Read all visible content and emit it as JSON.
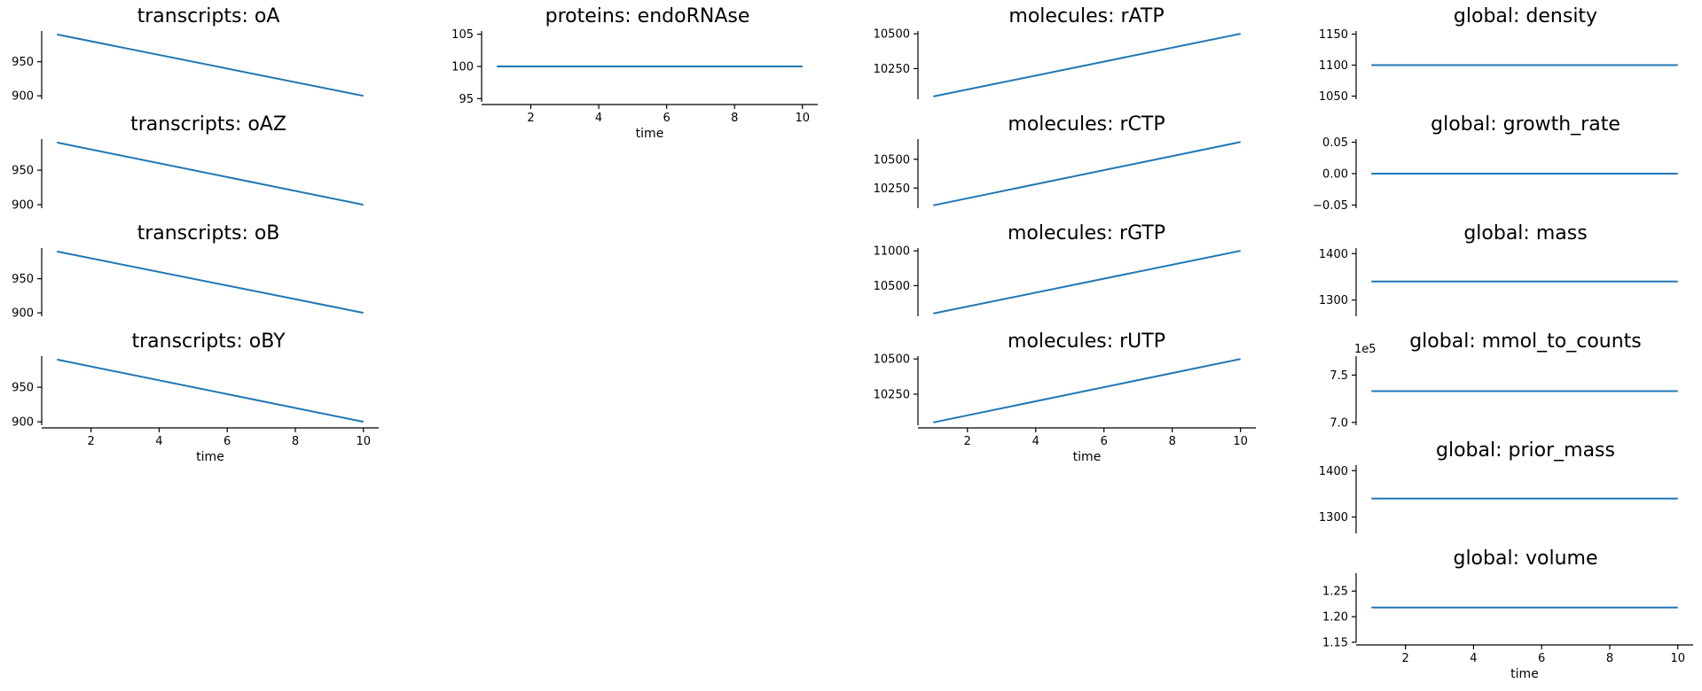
{
  "style": {
    "line_color": "#1f77b4"
  },
  "chart_data": [
    {
      "id": "t_oA",
      "type": "line",
      "title": "transcripts: oA",
      "x": [
        1,
        10
      ],
      "y": [
        990,
        900
      ],
      "ylim": [
        895,
        995
      ],
      "yticks": [
        900,
        950
      ],
      "xticks": [],
      "xlabel": ""
    },
    {
      "id": "t_oAZ",
      "type": "line",
      "title": "transcripts: oAZ",
      "x": [
        1,
        10
      ],
      "y": [
        990,
        900
      ],
      "ylim": [
        895,
        995
      ],
      "yticks": [
        900,
        950
      ],
      "xticks": [],
      "xlabel": ""
    },
    {
      "id": "t_oB",
      "type": "line",
      "title": "transcripts: oB",
      "x": [
        1,
        10
      ],
      "y": [
        990,
        900
      ],
      "ylim": [
        895,
        995
      ],
      "yticks": [
        900,
        950
      ],
      "xticks": [],
      "xlabel": ""
    },
    {
      "id": "t_oBY",
      "type": "line",
      "title": "transcripts: oBY",
      "x": [
        1,
        10
      ],
      "y": [
        990,
        900
      ],
      "ylim": [
        895,
        995
      ],
      "yticks": [
        900,
        950
      ],
      "xticks": [
        2,
        4,
        6,
        8,
        10
      ],
      "xlabel": "time"
    },
    {
      "id": "p_endo",
      "type": "line",
      "title": "proteins: endoRNAse",
      "x": [
        1,
        10
      ],
      "y": [
        100,
        100
      ],
      "ylim": [
        94.5,
        105.5
      ],
      "yticks": [
        95,
        100,
        105
      ],
      "xticks": [
        2,
        4,
        6,
        8,
        10
      ],
      "xlabel": "time"
    },
    {
      "id": "m_rATP",
      "type": "line",
      "title": "molecules: rATP",
      "x": [
        1,
        10
      ],
      "y": [
        10050,
        10500
      ],
      "ylim": [
        10030,
        10520
      ],
      "yticks": [
        10250,
        10500
      ],
      "xticks": [],
      "xlabel": ""
    },
    {
      "id": "m_rCTP",
      "type": "line",
      "title": "molecules: rCTP",
      "x": [
        1,
        10
      ],
      "y": [
        10100,
        10650
      ],
      "ylim": [
        10075,
        10675
      ],
      "yticks": [
        10250,
        10500
      ],
      "xticks": [],
      "xlabel": ""
    },
    {
      "id": "m_rGTP",
      "type": "line",
      "title": "molecules: rGTP",
      "x": [
        1,
        10
      ],
      "y": [
        10100,
        11000
      ],
      "ylim": [
        10060,
        11040
      ],
      "yticks": [
        10500,
        11000
      ],
      "xticks": [],
      "xlabel": ""
    },
    {
      "id": "m_rUTP",
      "type": "line",
      "title": "molecules: rUTP",
      "x": [
        1,
        10
      ],
      "y": [
        10050,
        10500
      ],
      "ylim": [
        10030,
        10520
      ],
      "yticks": [
        10250,
        10500
      ],
      "xticks": [
        2,
        4,
        6,
        8,
        10
      ],
      "xlabel": "time"
    },
    {
      "id": "g_density",
      "type": "line",
      "title": "global: density",
      "x": [
        1,
        10
      ],
      "y": [
        1100,
        1100
      ],
      "ylim": [
        1045,
        1155
      ],
      "yticks": [
        1050,
        1100,
        1150
      ],
      "xticks": [],
      "xlabel": ""
    },
    {
      "id": "g_growth",
      "type": "line",
      "title": "global: growth_rate",
      "x": [
        1,
        10
      ],
      "y": [
        0,
        0
      ],
      "ylim": [
        -0.055,
        0.055
      ],
      "yticks": [
        -0.05,
        0.0,
        0.05
      ],
      "ytick_labels": [
        "−0.05",
        "0.00",
        "0.05"
      ],
      "xticks": [],
      "xlabel": ""
    },
    {
      "id": "g_mass",
      "type": "line",
      "title": "global: mass",
      "x": [
        1,
        10
      ],
      "y": [
        1340,
        1340
      ],
      "ylim": [
        1265,
        1412
      ],
      "yticks": [
        1300,
        1400
      ],
      "xticks": [],
      "xlabel": ""
    },
    {
      "id": "g_mmol",
      "type": "line",
      "title": "global: mmol_to_counts",
      "x": [
        1,
        10
      ],
      "y": [
        7.33,
        7.33
      ],
      "ylim": [
        6.97,
        7.7
      ],
      "yticks": [
        7.0,
        7.5
      ],
      "ytick_labels": [
        "7.0",
        "7.5"
      ],
      "offset_text": "1e5",
      "xticks": [],
      "xlabel": ""
    },
    {
      "id": "g_prior",
      "type": "line",
      "title": "global: prior_mass",
      "x": [
        1,
        10
      ],
      "y": [
        1340,
        1340
      ],
      "ylim": [
        1265,
        1412
      ],
      "yticks": [
        1300,
        1400
      ],
      "xticks": [],
      "xlabel": ""
    },
    {
      "id": "g_volume",
      "type": "line",
      "title": "global: volume",
      "x": [
        1,
        10
      ],
      "y": [
        1.218,
        1.218
      ],
      "ylim": [
        1.15,
        1.285
      ],
      "yticks": [
        1.15,
        1.2,
        1.25
      ],
      "ytick_labels": [
        "1.15",
        "1.20",
        "1.25"
      ],
      "xticks": [
        2,
        4,
        6,
        8,
        10
      ],
      "xlabel": "time"
    }
  ]
}
